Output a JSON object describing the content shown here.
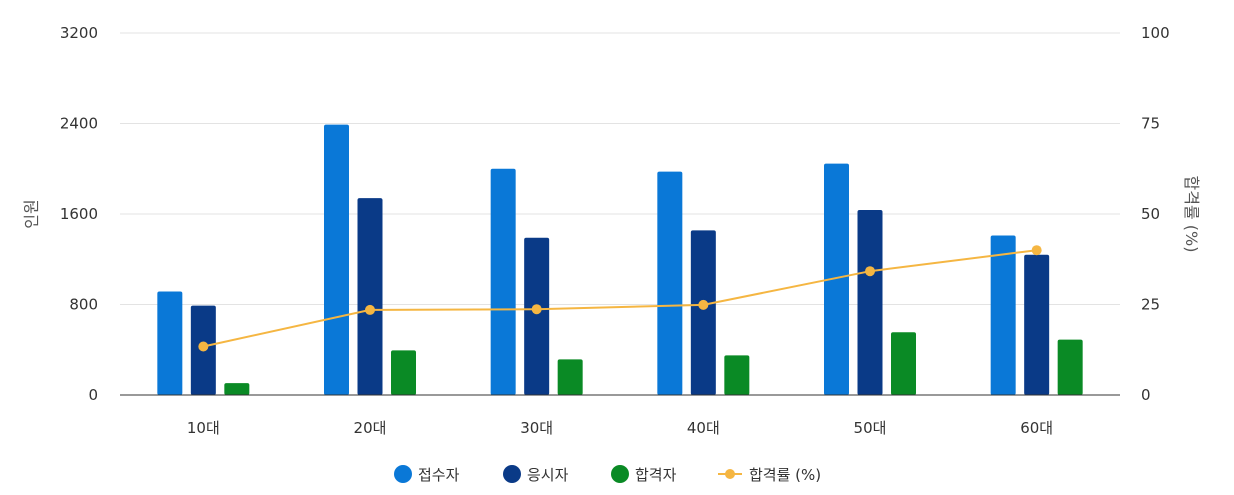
{
  "chart_data": {
    "type": "bar",
    "categories": [
      "10대",
      "20대",
      "30대",
      "40대",
      "50대",
      "60대"
    ],
    "series": [
      {
        "name": "접수자",
        "kind": "bar",
        "axis": "left",
        "color": "#0a78d7",
        "values": [
          915,
          2390,
          2000,
          1975,
          2045,
          1410
        ]
      },
      {
        "name": "응시자",
        "kind": "bar",
        "axis": "left",
        "color": "#0a3a87",
        "values": [
          790,
          1740,
          1390,
          1455,
          1635,
          1240
        ]
      },
      {
        "name": "합격자",
        "kind": "bar",
        "axis": "left",
        "color": "#0a8a25",
        "values": [
          105,
          395,
          315,
          350,
          555,
          490
        ]
      },
      {
        "name": "합격률 (%)",
        "kind": "line",
        "axis": "right",
        "color": "#f5b642",
        "values": [
          13.4,
          23.5,
          23.7,
          24.9,
          34.2,
          40.0
        ]
      }
    ],
    "ylabel": "인원",
    "y2label": "합격률 (%)",
    "ylim": [
      0,
      3200
    ],
    "y2lim": [
      0,
      100
    ],
    "yticks": [
      "0",
      "800",
      "1600",
      "2400",
      "3200"
    ],
    "y2ticks": [
      "0",
      "25",
      "50",
      "75",
      "100"
    ],
    "grid": true,
    "legend_position": "bottom"
  }
}
